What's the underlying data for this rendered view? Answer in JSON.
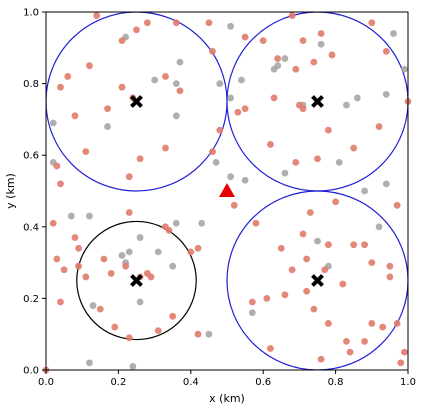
{
  "chart_data": {
    "type": "scatter",
    "title": "",
    "xlabel": "x (km)",
    "ylabel": "y (km)",
    "xlim": [
      0,
      1
    ],
    "ylim": [
      0,
      1
    ],
    "x_ticks": [
      "0.0",
      "0.2",
      "0.4",
      "0.6",
      "0.8",
      "1.0"
    ],
    "y_ticks": [
      "0.0",
      "0.2",
      "0.4",
      "0.6",
      "0.8",
      "1.0"
    ],
    "grid": false,
    "legend": "none",
    "colors": {
      "red_points": "#e07b6a",
      "gray_points": "#a6a6a6",
      "blue_circles": "#1f1fd6",
      "black_circle": "#000000",
      "centers": "#000000",
      "triangle": "#e80000"
    },
    "red_points": [
      [
        0.14,
        0.99
      ],
      [
        0.21,
        0.92
      ],
      [
        0.28,
        0.97
      ],
      [
        0.45,
        0.97
      ],
      [
        0.68,
        0.99
      ],
      [
        0.71,
        0.92
      ],
      [
        0.76,
        0.94
      ],
      [
        0.9,
        0.97
      ],
      [
        0.25,
        0.95
      ],
      [
        0.36,
        0.97
      ],
      [
        0.55,
        0.93
      ],
      [
        0.6,
        0.92
      ],
      [
        0.04,
        0.79
      ],
      [
        0.06,
        0.82
      ],
      [
        0.12,
        0.85
      ],
      [
        0.21,
        0.79
      ],
      [
        0.33,
        0.82
      ],
      [
        0.37,
        0.78
      ],
      [
        0.46,
        0.89
      ],
      [
        0.64,
        0.87
      ],
      [
        0.69,
        0.84
      ],
      [
        0.74,
        0.86
      ],
      [
        0.79,
        0.88
      ],
      [
        0.94,
        0.89
      ],
      [
        0.08,
        0.71
      ],
      [
        0.17,
        0.73
      ],
      [
        0.24,
        0.76
      ],
      [
        0.48,
        0.67
      ],
      [
        0.53,
        0.72
      ],
      [
        0.55,
        0.73
      ],
      [
        0.63,
        0.76
      ],
      [
        0.7,
        0.74
      ],
      [
        0.71,
        0.73
      ],
      [
        0.78,
        0.67
      ],
      [
        0.85,
        0.62
      ],
      [
        0.92,
        0.68
      ],
      [
        1.0,
        0.75
      ],
      [
        0.11,
        0.61
      ],
      [
        0.26,
        0.59
      ],
      [
        0.33,
        0.62
      ],
      [
        0.46,
        0.61
      ],
      [
        0.04,
        0.52
      ],
      [
        0.03,
        0.57
      ],
      [
        0.23,
        0.54
      ],
      [
        0.62,
        0.63
      ],
      [
        0.69,
        0.58
      ],
      [
        0.75,
        0.59
      ],
      [
        0.52,
        0.46
      ],
      [
        0.8,
        0.47
      ],
      [
        0.97,
        0.46
      ],
      [
        0.73,
        0.44
      ],
      [
        0.58,
        0.41
      ],
      [
        0.23,
        0.44
      ],
      [
        0.33,
        0.4
      ],
      [
        0.34,
        0.39
      ],
      [
        0.02,
        0.41
      ],
      [
        0.08,
        0.37
      ],
      [
        0.03,
        0.31
      ],
      [
        0.09,
        0.29
      ],
      [
        0.05,
        0.28
      ],
      [
        0.09,
        0.34
      ],
      [
        0.16,
        0.31
      ],
      [
        0.18,
        0.27
      ],
      [
        0.22,
        0.29
      ],
      [
        0.26,
        0.26
      ],
      [
        0.28,
        0.27
      ],
      [
        0.29,
        0.26
      ],
      [
        0.4,
        0.33
      ],
      [
        0.42,
        0.34
      ],
      [
        0.65,
        0.34
      ],
      [
        0.71,
        0.38
      ],
      [
        0.78,
        0.35
      ],
      [
        0.85,
        0.35
      ],
      [
        0.88,
        0.35
      ],
      [
        0.9,
        0.3
      ],
      [
        0.95,
        0.29
      ],
      [
        0.68,
        0.28
      ],
      [
        0.72,
        0.31
      ],
      [
        0.61,
        0.2
      ],
      [
        0.57,
        0.19
      ],
      [
        0.66,
        0.21
      ],
      [
        0.72,
        0.22
      ],
      [
        0.77,
        0.28
      ],
      [
        0.82,
        0.24
      ],
      [
        0.95,
        0.26
      ],
      [
        0.74,
        0.17
      ],
      [
        0.78,
        0.13
      ],
      [
        0.83,
        0.08
      ],
      [
        0.88,
        0.08
      ],
      [
        0.84,
        0.05
      ],
      [
        0.9,
        0.13
      ],
      [
        0.93,
        0.12
      ],
      [
        0.97,
        0.13
      ],
      [
        0.99,
        0.05
      ],
      [
        0.98,
        0.02
      ],
      [
        0.62,
        0.06
      ],
      [
        0.76,
        0.03
      ],
      [
        0.04,
        0.19
      ],
      [
        0.11,
        0.26
      ],
      [
        0.15,
        0.17
      ],
      [
        0.19,
        0.12
      ],
      [
        0.23,
        0.09
      ],
      [
        0.31,
        0.11
      ],
      [
        0.35,
        0.15
      ],
      [
        0.42,
        0.1
      ],
      [
        0.0,
        0.0
      ]
    ],
    "gray_points": [
      [
        0.22,
        0.93
      ],
      [
        0.3,
        0.81
      ],
      [
        0.36,
        0.8
      ],
      [
        0.37,
        0.86
      ],
      [
        0.51,
        0.96
      ],
      [
        0.54,
        0.81
      ],
      [
        0.64,
        0.85
      ],
      [
        0.66,
        0.87
      ],
      [
        0.76,
        0.91
      ],
      [
        0.96,
        0.94
      ],
      [
        0.99,
        0.84
      ],
      [
        0.83,
        0.74
      ],
      [
        0.86,
        0.76
      ],
      [
        0.94,
        0.77
      ],
      [
        0.71,
        0.74
      ],
      [
        0.36,
        0.71
      ],
      [
        0.48,
        0.8
      ],
      [
        0.51,
        0.76
      ],
      [
        0.02,
        0.69
      ],
      [
        0.17,
        0.68
      ],
      [
        0.02,
        0.58
      ],
      [
        0.47,
        0.58
      ],
      [
        0.51,
        0.54
      ],
      [
        0.55,
        0.53
      ],
      [
        0.66,
        0.55
      ],
      [
        0.81,
        0.58
      ],
      [
        0.94,
        0.52
      ],
      [
        0.07,
        0.43
      ],
      [
        0.12,
        0.43
      ],
      [
        0.26,
        0.37
      ],
      [
        0.36,
        0.41
      ],
      [
        0.43,
        0.41
      ],
      [
        0.75,
        0.36
      ],
      [
        0.92,
        0.4
      ],
      [
        0.22,
        0.3
      ],
      [
        0.21,
        0.32
      ],
      [
        0.23,
        0.33
      ],
      [
        0.31,
        0.33
      ],
      [
        0.35,
        0.29
      ],
      [
        0.13,
        0.18
      ],
      [
        0.26,
        0.19
      ],
      [
        0.57,
        0.16
      ],
      [
        0.45,
        0.1
      ],
      [
        0.12,
        0.02
      ],
      [
        0.24,
        0.01
      ],
      [
        0.78,
        0.29
      ],
      [
        0.88,
        0.5
      ],
      [
        0.63,
        0.84
      ]
    ],
    "centers": [
      [
        0.25,
        0.75
      ],
      [
        0.75,
        0.75
      ],
      [
        0.25,
        0.25
      ],
      [
        0.75,
        0.25
      ]
    ],
    "circles": [
      {
        "cx": 0.25,
        "cy": 0.75,
        "r": 0.25,
        "color": "#1f1fd6"
      },
      {
        "cx": 0.75,
        "cy": 0.75,
        "r": 0.25,
        "color": "#1f1fd6"
      },
      {
        "cx": 0.25,
        "cy": 0.25,
        "r": 0.165,
        "color": "#000000"
      },
      {
        "cx": 0.75,
        "cy": 0.25,
        "r": 0.25,
        "color": "#1f1fd6"
      }
    ],
    "triangle": [
      0.5,
      0.5
    ]
  }
}
